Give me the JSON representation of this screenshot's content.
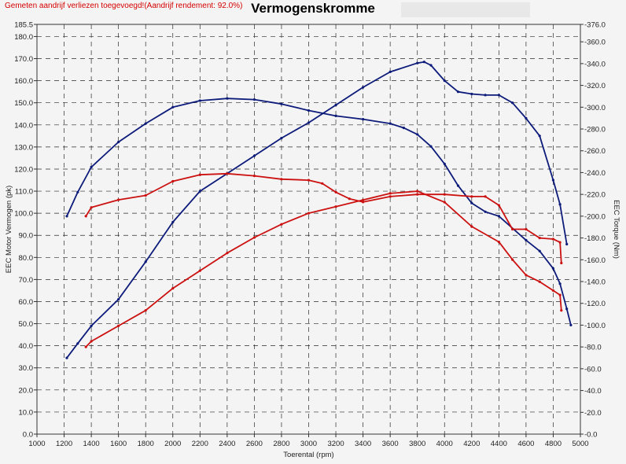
{
  "header": {
    "note": "Gemeten aandrijf verliezen toegevoegd!(Aandrijf rendement: 92.0%)",
    "title": "Vermogenskromme"
  },
  "colors": {
    "blue": "#0d1b7a",
    "red": "#cc1111",
    "grid": "#2b2b2b",
    "background": "#f4f4f4"
  },
  "chart_data": {
    "type": "line",
    "title": "Vermogenskromme",
    "xlabel": "Toerental (rpm)",
    "ylabel": "EEC Motor Vermogen (pk)",
    "y2label": "EEC Torque (Nm)",
    "xlim": [
      1000,
      5000
    ],
    "ylim": [
      0,
      185.5
    ],
    "y2lim": [
      0,
      376
    ],
    "grid": true,
    "x_ticks": [
      "1000",
      "1200",
      "1400",
      "1600",
      "1800",
      "2000",
      "2200",
      "2400",
      "2600",
      "2800",
      "3000",
      "3200",
      "3400",
      "3600",
      "3800",
      "4000",
      "4200",
      "4400",
      "4600",
      "4800",
      "5000"
    ],
    "y_ticks": [
      "0.0",
      "10.0",
      "20.0",
      "30.0",
      "40.0",
      "50.0",
      "60.0",
      "70.0",
      "80.0",
      "90.0",
      "100.0",
      "110.0",
      "120.0",
      "130.0",
      "140.0",
      "150.0",
      "160.0",
      "170.0",
      "180.0",
      "185.5"
    ],
    "y2_ticks": [
      "0.0",
      "20.0",
      "40.0",
      "60.0",
      "80.0",
      "100.0",
      "120.0",
      "140.0",
      "160.0",
      "180.0",
      "200.0",
      "220.0",
      "240.0",
      "260.0",
      "280.0",
      "300.0",
      "320.0",
      "340.0",
      "360.0",
      "376.0"
    ],
    "series": [
      {
        "id": "torque-blue",
        "axis": "y2",
        "color": "#0d1b7a",
        "points": [
          [
            1220,
            200
          ],
          [
            1300,
            222
          ],
          [
            1400,
            245
          ],
          [
            1600,
            268
          ],
          [
            1800,
            285
          ],
          [
            2000,
            300
          ],
          [
            2200,
            306
          ],
          [
            2400,
            308
          ],
          [
            2600,
            307
          ],
          [
            2800,
            303
          ],
          [
            3000,
            297
          ],
          [
            3200,
            292
          ],
          [
            3400,
            289
          ],
          [
            3600,
            285
          ],
          [
            3700,
            281
          ],
          [
            3800,
            275
          ],
          [
            3900,
            264
          ],
          [
            4000,
            248
          ],
          [
            4100,
            228
          ],
          [
            4200,
            212
          ],
          [
            4300,
            204
          ],
          [
            4400,
            200
          ],
          [
            4600,
            178
          ],
          [
            4700,
            168
          ],
          [
            4800,
            152
          ],
          [
            4850,
            138
          ],
          [
            4900,
            115
          ],
          [
            4930,
            100
          ]
        ]
      },
      {
        "id": "power-blue",
        "axis": "y",
        "color": "#0d1b7a",
        "points": [
          [
            1220,
            34.5
          ],
          [
            1300,
            41
          ],
          [
            1400,
            49
          ],
          [
            1600,
            61
          ],
          [
            1800,
            78
          ],
          [
            2000,
            96
          ],
          [
            2200,
            110
          ],
          [
            2400,
            118
          ],
          [
            2600,
            126
          ],
          [
            2800,
            134
          ],
          [
            3000,
            141
          ],
          [
            3200,
            149
          ],
          [
            3400,
            157
          ],
          [
            3600,
            164
          ],
          [
            3800,
            168
          ],
          [
            3850,
            168.5
          ],
          [
            3900,
            167
          ],
          [
            4000,
            160
          ],
          [
            4100,
            155
          ],
          [
            4200,
            154
          ],
          [
            4300,
            153.5
          ],
          [
            4400,
            153.5
          ],
          [
            4500,
            150
          ],
          [
            4600,
            143
          ],
          [
            4700,
            135
          ],
          [
            4800,
            115
          ],
          [
            4850,
            104
          ],
          [
            4900,
            86
          ]
        ]
      },
      {
        "id": "torque-red",
        "axis": "y2",
        "color": "#cc1111",
        "points": [
          [
            1360,
            200
          ],
          [
            1400,
            208
          ],
          [
            1600,
            215
          ],
          [
            1800,
            219
          ],
          [
            2000,
            232
          ],
          [
            2200,
            238
          ],
          [
            2400,
            239
          ],
          [
            2600,
            237
          ],
          [
            2800,
            234
          ],
          [
            3000,
            233
          ],
          [
            3100,
            230
          ],
          [
            3200,
            222
          ],
          [
            3300,
            216
          ],
          [
            3400,
            213
          ],
          [
            3600,
            218
          ],
          [
            3800,
            220
          ],
          [
            4000,
            220
          ],
          [
            4200,
            218
          ],
          [
            4300,
            218
          ],
          [
            4400,
            210
          ],
          [
            4500,
            188
          ],
          [
            4600,
            188
          ],
          [
            4700,
            180
          ],
          [
            4800,
            179
          ],
          [
            4850,
            176
          ],
          [
            4860,
            157
          ]
        ]
      },
      {
        "id": "power-red",
        "axis": "y",
        "color": "#cc1111",
        "points": [
          [
            1360,
            39.5
          ],
          [
            1400,
            42
          ],
          [
            1600,
            49
          ],
          [
            1800,
            56
          ],
          [
            2000,
            66
          ],
          [
            2200,
            74
          ],
          [
            2400,
            82
          ],
          [
            2600,
            89
          ],
          [
            2800,
            95
          ],
          [
            3000,
            100
          ],
          [
            3200,
            103
          ],
          [
            3400,
            106
          ],
          [
            3600,
            109
          ],
          [
            3800,
            110
          ],
          [
            4000,
            105
          ],
          [
            4200,
            94
          ],
          [
            4400,
            87
          ],
          [
            4500,
            79
          ],
          [
            4600,
            72
          ],
          [
            4700,
            69
          ],
          [
            4800,
            65
          ],
          [
            4850,
            63
          ],
          [
            4860,
            56
          ]
        ]
      }
    ]
  }
}
